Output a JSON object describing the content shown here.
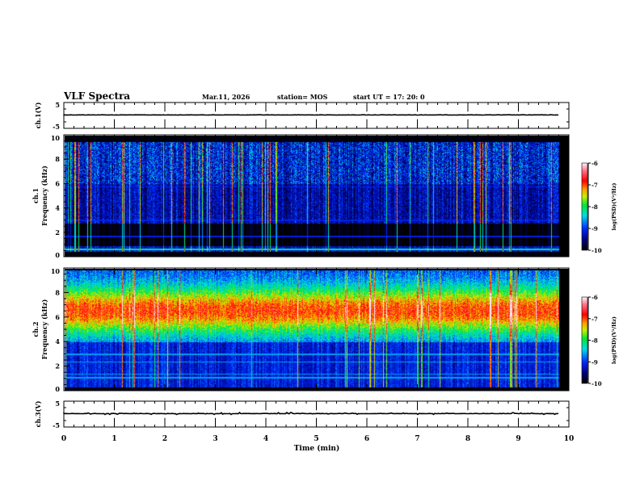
{
  "header": {
    "title": "VLF Spectra",
    "date": "Mar.11, 2026",
    "station": "station= MOS",
    "start": "start  UT =   17: 20: 0"
  },
  "chart_data": [
    {
      "type": "line",
      "name": "ch1-waveform",
      "ylabel": "ch.1(V)",
      "ylim": [
        -5,
        5
      ],
      "yticks": [
        "5",
        "-5"
      ],
      "baseline_value": 0.2,
      "xlim": [
        0,
        10
      ]
    },
    {
      "type": "heatmap",
      "name": "ch1-spectrogram",
      "ylabel_line1": "ch.1",
      "ylabel_line2": "Frequency (kHz)",
      "ylim": [
        0,
        10
      ],
      "yticks": [
        "0",
        "2",
        "4",
        "6",
        "8",
        "10"
      ],
      "xlim": [
        0,
        10
      ],
      "data_end_min": 9.8,
      "colorbar": {
        "label": "log(PSD)(V²/Hz)",
        "range": [
          -10,
          -6
        ],
        "ticks": [
          "-6",
          "-7",
          "-8",
          "-9",
          "-10"
        ]
      }
    },
    {
      "type": "heatmap",
      "name": "ch2-spectrogram",
      "ylabel_line1": "ch.2",
      "ylabel_line2": "Frequency (kHz)",
      "ylim": [
        0,
        10
      ],
      "yticks": [
        "0",
        "2",
        "4",
        "6",
        "8",
        "10"
      ],
      "xlim": [
        0,
        10
      ],
      "data_end_min": 9.8,
      "colorbar": {
        "label": "log(PSD)(V²/Hz)",
        "range": [
          -10,
          -6
        ],
        "ticks": [
          "-6",
          "-7",
          "-8",
          "-9",
          "-10"
        ]
      }
    },
    {
      "type": "line",
      "name": "ch3-waveform",
      "ylabel": "ch.3(V)",
      "ylim": [
        -5,
        5
      ],
      "yticks": [
        "5",
        "-5"
      ],
      "baseline_value": 0.2,
      "xlim": [
        0,
        10
      ]
    }
  ],
  "xaxis": {
    "label": "Time  (min)",
    "ticks": [
      "0",
      "1",
      "2",
      "3",
      "4",
      "5",
      "6",
      "7",
      "8",
      "9",
      "10"
    ]
  }
}
